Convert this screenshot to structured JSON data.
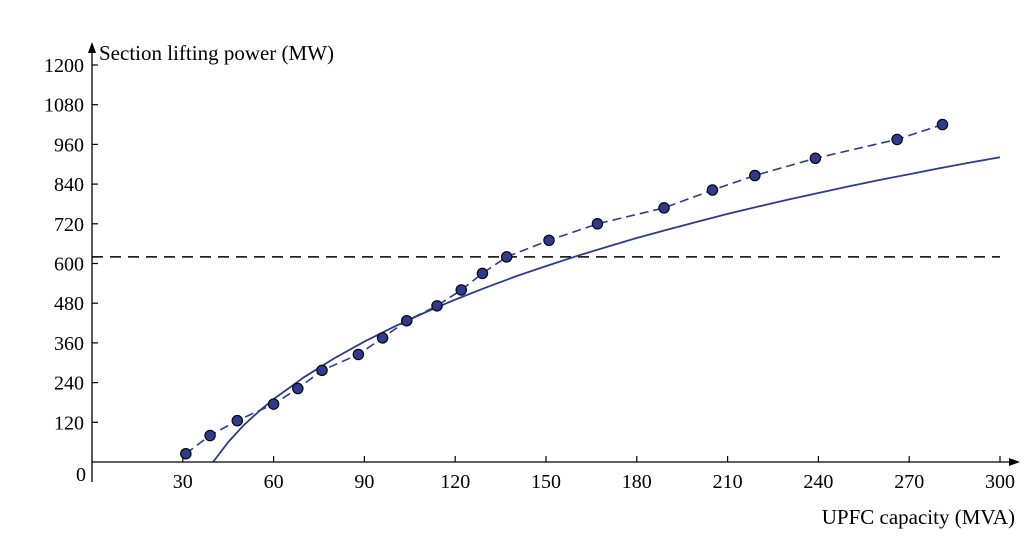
{
  "chart_data": {
    "type": "line",
    "title": "",
    "xlabel": "UPFC capacity (MVA)",
    "ylabel": "Section lifting power (MW)",
    "origin_label": "0",
    "xlim": [
      0,
      300
    ],
    "ylim": [
      0,
      1200
    ],
    "x_ticks": [
      30,
      60,
      90,
      120,
      150,
      180,
      210,
      240,
      270,
      300
    ],
    "y_ticks": [
      120,
      240,
      360,
      480,
      600,
      720,
      840,
      960,
      1080,
      1200
    ],
    "grid": false,
    "legend": "none",
    "threshold_line": {
      "y": 620,
      "style": "dashed",
      "color": "#000000"
    },
    "series": [
      {
        "style": "dashed-with-markers",
        "color": "#2e3a8c",
        "marker_fill": "#2e3a8c",
        "x": [
          31,
          39,
          48,
          60,
          68,
          76,
          88,
          96,
          104,
          114,
          122,
          129,
          137,
          151,
          167,
          189,
          205,
          219,
          239,
          266,
          281
        ],
        "y": [
          25,
          80,
          125,
          175,
          222,
          277,
          325,
          375,
          427,
          472,
          520,
          570,
          620,
          670,
          720,
          768,
          822,
          866,
          918,
          975,
          1020
        ]
      },
      {
        "style": "solid",
        "color": "#2e3a8c",
        "x": [
          40,
          45,
          50,
          55,
          60,
          70,
          80,
          90,
          100,
          110,
          120,
          130,
          140,
          150,
          160,
          170,
          180,
          190,
          200,
          210,
          220,
          230,
          240,
          250,
          260,
          270,
          280,
          290,
          300
        ],
        "y": [
          0,
          60,
          110,
          152,
          190,
          256,
          313,
          364,
          410,
          452,
          491,
          527,
          561,
          592,
          622,
          650,
          677,
          702,
          726,
          750,
          772,
          793,
          813,
          833,
          852,
          870,
          888,
          905,
          921
        ]
      }
    ]
  }
}
